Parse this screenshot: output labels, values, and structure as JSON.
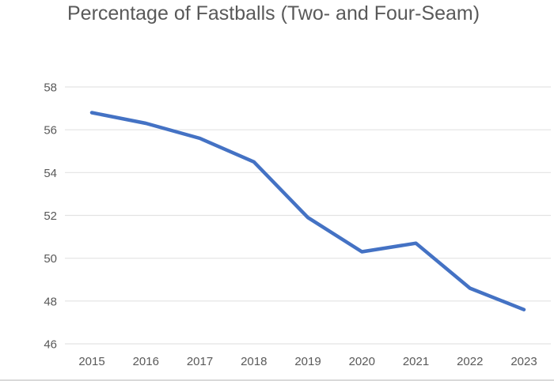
{
  "chart_data": {
    "type": "line",
    "title": "Percentage of Fastballs (Two- and Four-Seam)",
    "categories": [
      "2015",
      "2016",
      "2017",
      "2018",
      "2019",
      "2020",
      "2021",
      "2022",
      "2023"
    ],
    "values": [
      56.8,
      56.3,
      55.6,
      54.5,
      51.9,
      50.3,
      50.7,
      48.6,
      47.6
    ],
    "ylim": [
      46,
      58
    ],
    "yticks": [
      46,
      48,
      50,
      52,
      54,
      56,
      58
    ],
    "grid": true,
    "legend": false,
    "markers": false,
    "colors": {
      "line": "#4472C4",
      "grid": "#e3e3e3",
      "text": "#595959",
      "background": "#ffffff",
      "border": "#d9d9d9"
    }
  }
}
